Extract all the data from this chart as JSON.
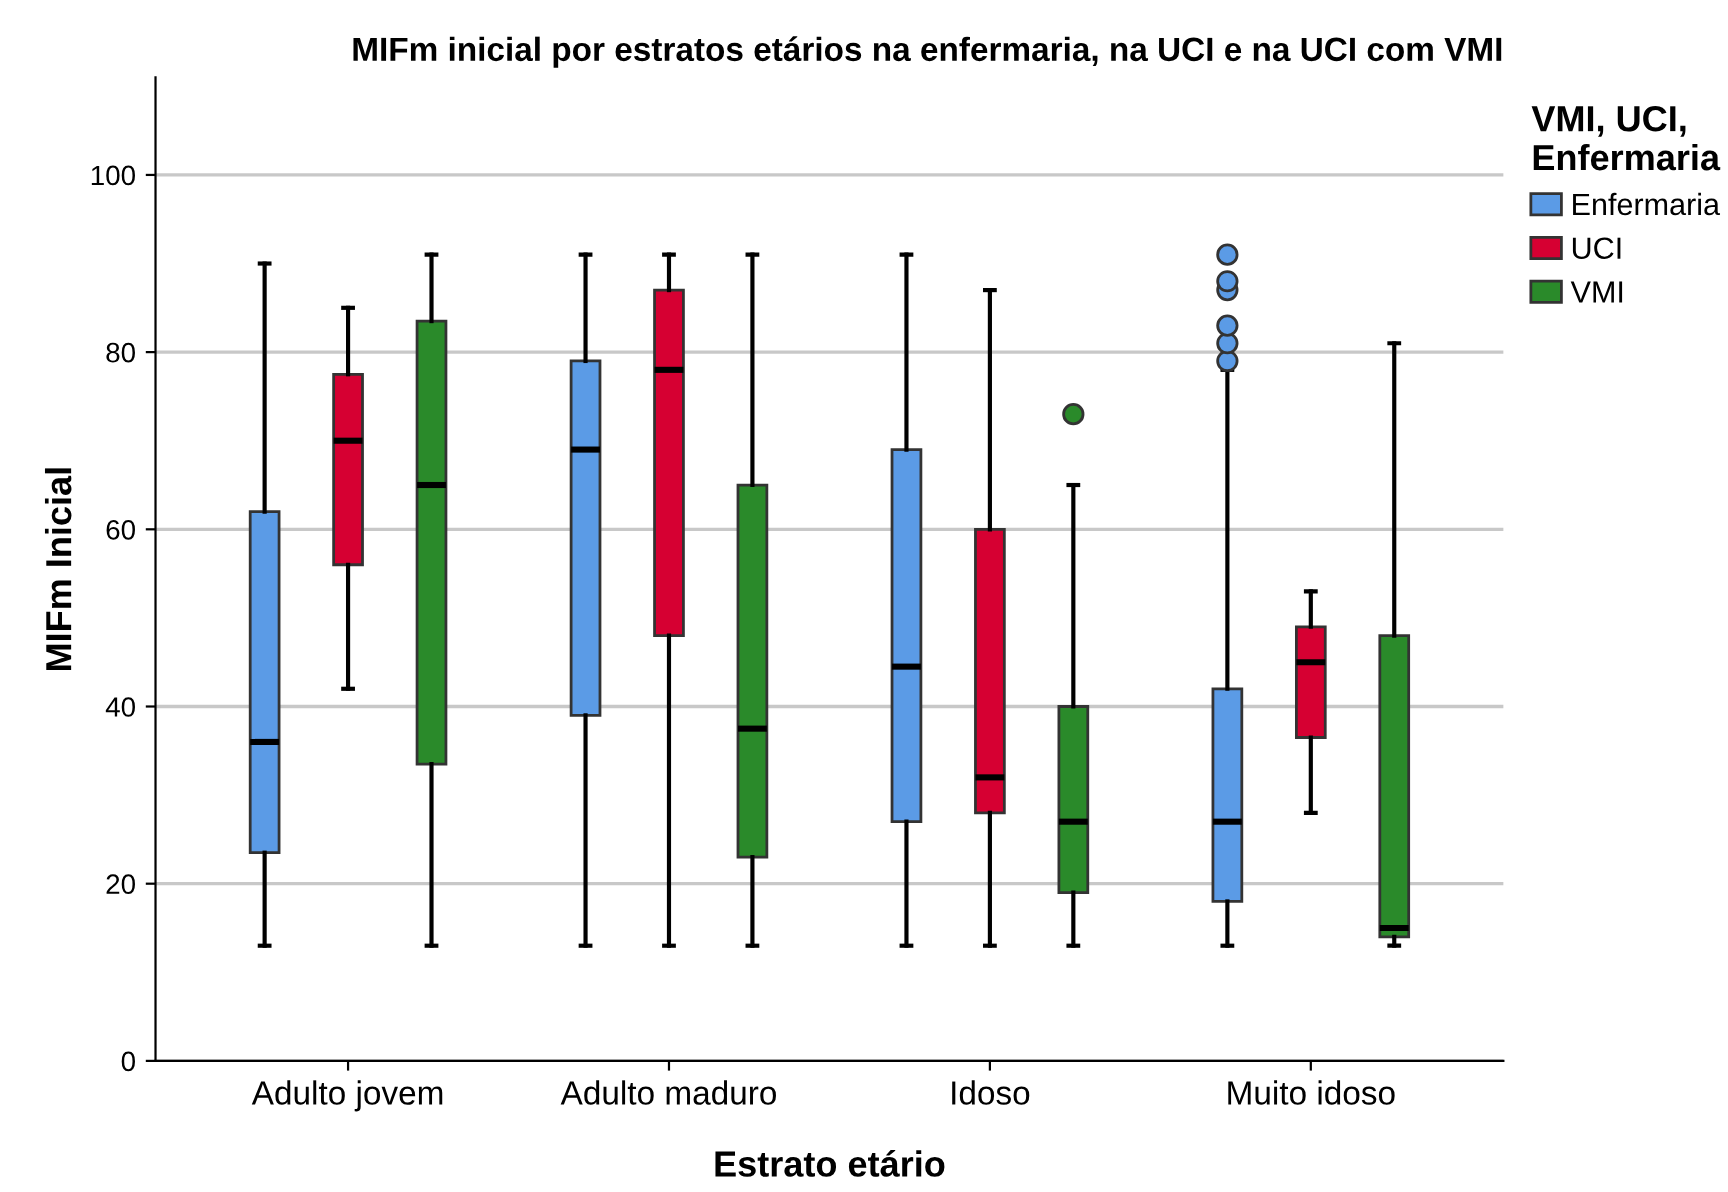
{
  "chart_data": {
    "type": "box",
    "title": "MIFm inicial por estratos etários na enfermaria, na UCI e na UCI com VMI",
    "xlabel": "Estrato etário",
    "ylabel": "MIFm Inicial",
    "legend_title": "VMI, UCI,\nEnfermaria",
    "legend": "top right",
    "grid": "y",
    "ylim": [
      0,
      111
    ],
    "yticks": [
      0,
      20,
      40,
      60,
      80,
      100
    ],
    "categories": [
      "Adulto jovem",
      "Adulto maduro",
      "Idoso",
      "Muito idoso"
    ],
    "series": [
      {
        "name": "Enfermaria",
        "color": "#5b9be6",
        "boxes": [
          {
            "low": 13,
            "q1": 23.5,
            "median": 36,
            "q3": 62,
            "high": 90
          },
          {
            "low": 13,
            "q1": 39,
            "median": 69,
            "q3": 79,
            "high": 91
          },
          {
            "low": 13,
            "q1": 27,
            "median": 44.5,
            "q3": 69,
            "high": 91
          },
          {
            "low": 13,
            "q1": 18,
            "median": 27,
            "q3": 42,
            "high": 78,
            "outliers": [
              79,
              81,
              83,
              87,
              88,
              91
            ]
          }
        ]
      },
      {
        "name": "UCI",
        "color": "#d60032",
        "boxes": [
          {
            "low": 42,
            "q1": 56,
            "median": 70,
            "q3": 77.5,
            "high": 85
          },
          {
            "low": 13,
            "q1": 48,
            "median": 78,
            "q3": 87,
            "high": 91
          },
          {
            "low": 13,
            "q1": 28,
            "median": 32,
            "q3": 60,
            "high": 87
          },
          {
            "low": 28,
            "q1": 36.5,
            "median": 45,
            "q3": 49,
            "high": 53
          }
        ]
      },
      {
        "name": "VMI",
        "color": "#2a8a2a",
        "boxes": [
          {
            "low": 13,
            "q1": 33.5,
            "median": 65,
            "q3": 83.5,
            "high": 91
          },
          {
            "low": 13,
            "q1": 23,
            "median": 37.5,
            "q3": 65,
            "high": 91
          },
          {
            "low": 13,
            "q1": 19,
            "median": 27,
            "q3": 40,
            "high": 65,
            "outliers": [
              73
            ]
          },
          {
            "low": 13,
            "q1": 14,
            "median": 15,
            "q3": 48,
            "high": 81
          }
        ]
      }
    ]
  }
}
